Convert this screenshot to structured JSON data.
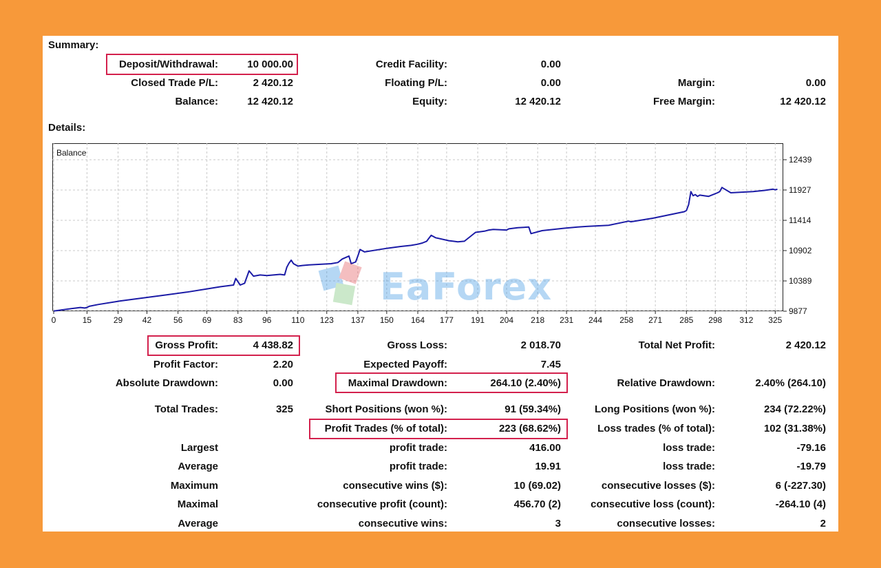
{
  "summary": {
    "heading": "Summary:",
    "deposit_label": "Deposit/Withdrawal:",
    "deposit_value": "10 000.00",
    "credit_label": "Credit Facility:",
    "credit_value": "0.00",
    "closed_pl_label": "Closed Trade P/L:",
    "closed_pl_value": "2 420.12",
    "floating_pl_label": "Floating P/L:",
    "floating_pl_value": "0.00",
    "margin_label": "Margin:",
    "margin_value": "0.00",
    "balance_label": "Balance:",
    "balance_value": "12 420.12",
    "equity_label": "Equity:",
    "equity_value": "12 420.12",
    "free_margin_label": "Free Margin:",
    "free_margin_value": "12 420.12"
  },
  "details": {
    "heading": "Details:",
    "gross_profit_label": "Gross Profit:",
    "gross_profit_value": "4 438.82",
    "gross_loss_label": "Gross Loss:",
    "gross_loss_value": "2 018.70",
    "total_net_label": "Total Net Profit:",
    "total_net_value": "2 420.12",
    "profit_factor_label": "Profit Factor:",
    "profit_factor_value": "2.20",
    "expected_payoff_label": "Expected Payoff:",
    "expected_payoff_value": "7.45",
    "abs_dd_label": "Absolute Drawdown:",
    "abs_dd_value": "0.00",
    "max_dd_label": "Maximal Drawdown:",
    "max_dd_value": "264.10 (2.40%)",
    "rel_dd_label": "Relative Drawdown:",
    "rel_dd_value": "2.40% (264.10)",
    "total_trades_label": "Total Trades:",
    "total_trades_value": "325",
    "short_label": "Short Positions (won %):",
    "short_value": "91 (59.34%)",
    "long_label": "Long Positions (won %):",
    "long_value": "234 (72.22%)",
    "profit_trades_label": "Profit Trades (% of total):",
    "profit_trades_value": "223 (68.62%)",
    "loss_trades_label": "Loss trades (% of total):",
    "loss_trades_value": "102 (31.38%)",
    "rows": [
      {
        "a": "Largest",
        "b": "profit trade:",
        "bv": "416.00",
        "c": "loss trade:",
        "cv": "-79.16"
      },
      {
        "a": "Average",
        "b": "profit trade:",
        "bv": "19.91",
        "c": "loss trade:",
        "cv": "-19.79"
      },
      {
        "a": "Maximum",
        "b": "consecutive wins ($):",
        "bv": "10 (69.02)",
        "c": "consecutive losses ($):",
        "cv": "6 (-227.30)"
      },
      {
        "a": "Maximal",
        "b": "consecutive profit (count):",
        "bv": "456.70 (2)",
        "c": "consecutive loss (count):",
        "cv": "-264.10 (4)"
      },
      {
        "a": "Average",
        "b": "consecutive wins:",
        "bv": "3",
        "c": "consecutive losses:",
        "cv": "2"
      }
    ]
  },
  "watermark": "EaForex",
  "colors": {
    "background": "#f7993a",
    "line": "#1b1ba6",
    "highlight": "#d3204c",
    "grid": "#c8c8c8"
  },
  "chart_data": {
    "type": "line",
    "title": "Balance",
    "xlabel": "",
    "ylabel": "",
    "x_ticks": [
      "0",
      "15",
      "29",
      "42",
      "56",
      "69",
      "83",
      "96",
      "110",
      "123",
      "137",
      "150",
      "164",
      "177",
      "191",
      "204",
      "218",
      "231",
      "244",
      "258",
      "271",
      "285",
      "298",
      "312",
      "325"
    ],
    "y_ticks": [
      "12439",
      "11927",
      "11414",
      "10902",
      "10389",
      "9877"
    ],
    "xlim": [
      0,
      328
    ],
    "ylim": [
      9877,
      12439
    ],
    "grid": true,
    "series": [
      {
        "x": [
          0,
          8,
          12,
          14,
          15,
          16,
          20,
          30,
          40,
          50,
          60,
          70,
          75,
          81,
          82,
          84,
          86,
          88,
          90,
          93,
          96,
          99,
          102,
          104,
          105,
          106,
          107,
          108,
          110,
          112,
          115,
          120,
          125,
          128,
          130,
          133,
          134,
          136,
          137,
          138,
          140,
          145,
          150,
          156,
          161,
          164,
          166,
          168,
          170,
          172,
          178,
          180,
          182,
          185,
          190,
          194,
          196,
          198,
          204,
          205,
          209,
          214,
          215,
          220,
          230,
          236,
          240,
          250,
          259,
          260,
          270,
          284,
          285,
          286,
          287,
          288,
          289,
          290,
          291,
          295,
          299,
          300,
          301,
          305,
          315,
          320,
          324,
          325,
          326
        ],
        "y": [
          9880,
          9920,
          9940,
          9930,
          9940,
          9960,
          9990,
          10050,
          10100,
          10150,
          10200,
          10260,
          10290,
          10320,
          10430,
          10320,
          10350,
          10560,
          10470,
          10490,
          10480,
          10490,
          10500,
          10490,
          10620,
          10690,
          10740,
          10680,
          10640,
          10650,
          10660,
          10670,
          10680,
          10700,
          10760,
          10810,
          10680,
          10710,
          10810,
          10920,
          10880,
          10910,
          10940,
          10970,
          10990,
          11010,
          11030,
          11060,
          11160,
          11120,
          11070,
          11060,
          11050,
          11060,
          11210,
          11230,
          11250,
          11260,
          11250,
          11270,
          11290,
          11300,
          11190,
          11240,
          11280,
          11300,
          11310,
          11330,
          11400,
          11390,
          11450,
          11560,
          11580,
          11680,
          11900,
          11830,
          11850,
          11820,
          11840,
          11820,
          11880,
          11900,
          11970,
          11880,
          11900,
          11920,
          11940,
          11930,
          11940
        ]
      }
    ]
  }
}
